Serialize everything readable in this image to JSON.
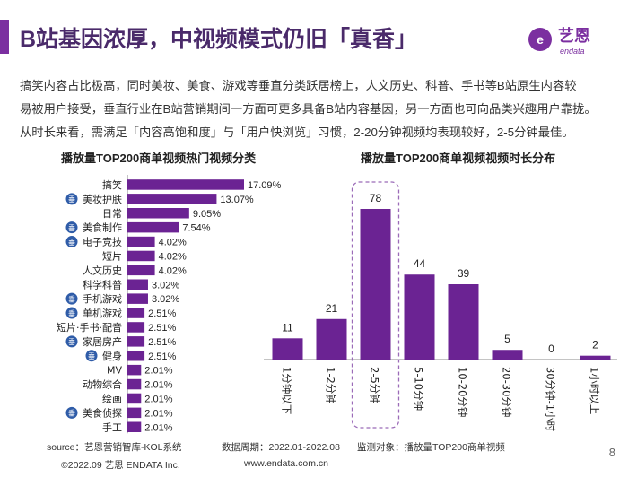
{
  "header": {
    "title": "B站基因浓厚，中视频模式仍旧「真香」",
    "logo_text": "艺恩",
    "logo_sub": "endata"
  },
  "intro": {
    "lines": [
      "搞笑内容占比极高，同时美妆、美食、游戏等垂直分类跃居榜上，人文历史、科普、手书等B站原生内容较",
      "易被用户接受，垂直行业在B站营销期间一方面可更多具备B站内容基因，另一方面也可向品类兴趣用户靠拢。",
      "从时长来看，需满足「内容高饱和度」与「用户快浏览」习惯，2-20分钟视频均表现较好，2-5分钟最佳。"
    ]
  },
  "badge_char": "垂",
  "colors": {
    "accent": "#7B2FA0",
    "bar": "#6B2393",
    "title": "#4a2a6a",
    "badge": "#2F5CA8",
    "highlight_border": "#9B6BB8"
  },
  "chart_data": [
    {
      "type": "bar",
      "orientation": "horizontal",
      "title": "播放量TOP200商单视频热门视频分类",
      "categories": [
        "搞笑",
        "美妆护肤",
        "日常",
        "美食制作",
        "电子竞技",
        "短片",
        "人文历史",
        "科学科普",
        "手机游戏",
        "单机游戏",
        "短片·手书·配音",
        "家居房产",
        "健身",
        "MV",
        "动物综合",
        "绘画",
        "美食侦探",
        "手工"
      ],
      "values": [
        17.09,
        13.07,
        9.05,
        7.54,
        4.02,
        4.02,
        4.02,
        3.02,
        3.02,
        2.51,
        2.51,
        2.51,
        2.51,
        2.01,
        2.01,
        2.01,
        2.01,
        2.01
      ],
      "value_labels": [
        "17.09%",
        "13.07%",
        "9.05%",
        "7.54%",
        "4.02%",
        "4.02%",
        "4.02%",
        "3.02%",
        "3.02%",
        "2.51%",
        "2.51%",
        "2.51%",
        "2.51%",
        "2.01%",
        "2.01%",
        "2.01%",
        "2.01%",
        "2.01%"
      ],
      "vertical_badge": [
        false,
        true,
        false,
        true,
        true,
        false,
        false,
        false,
        true,
        true,
        false,
        true,
        true,
        false,
        false,
        false,
        true,
        false
      ],
      "xlim": [
        0,
        17.09
      ]
    },
    {
      "type": "bar",
      "orientation": "vertical",
      "title": "播放量TOP200商单视频视频时长分布",
      "categories": [
        "1分钟以下",
        "1-2分钟",
        "2-5分钟",
        "5-10分钟",
        "10-20分钟",
        "20-30分钟",
        "30分钟-1小时",
        "1小时以上"
      ],
      "values": [
        11,
        21,
        78,
        44,
        39,
        5,
        0,
        2
      ],
      "highlight": "2-5分钟",
      "ylim": [
        0,
        78
      ]
    }
  ],
  "footer": {
    "source": "source：艺恩营销智库-KOL系统",
    "period": "数据周期：2022.01-2022.08",
    "target": "监测对象：播放量TOP200商单视频",
    "copyright": "©2022.09 艺恩 ENDATA Inc.",
    "website": "www.endata.com.cn",
    "page": "8"
  }
}
